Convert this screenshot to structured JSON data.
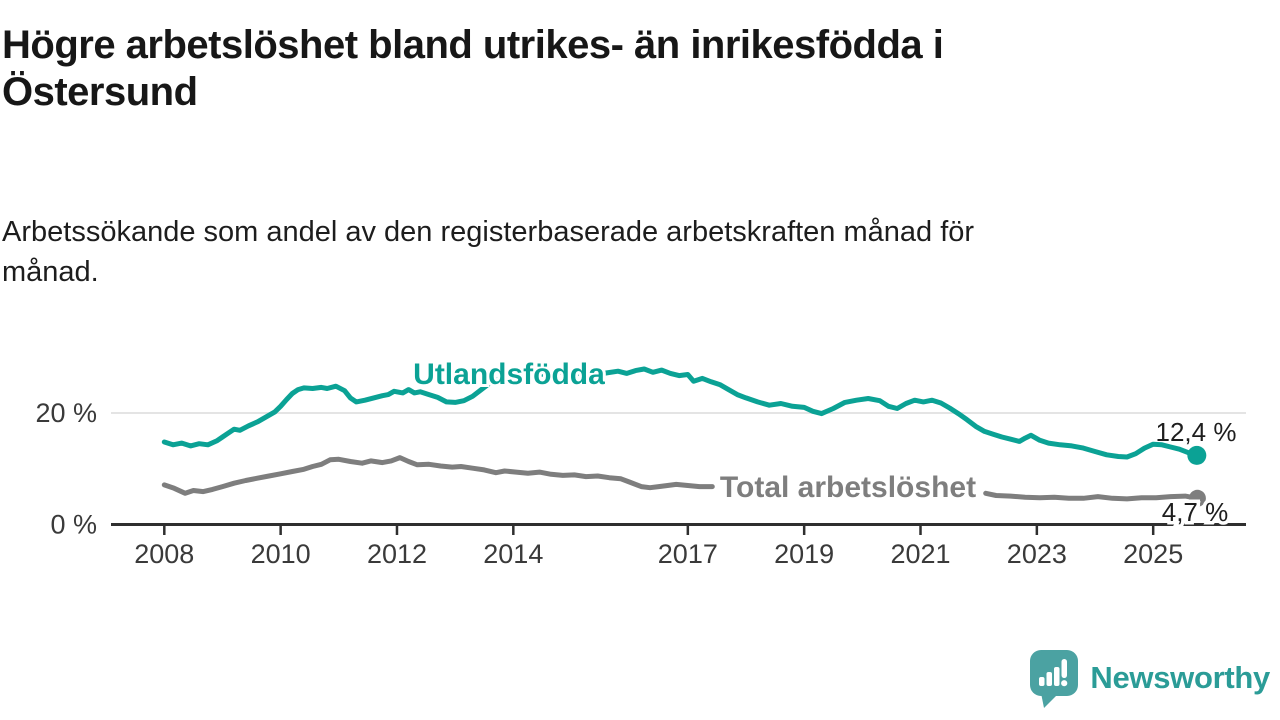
{
  "header": {
    "title": "Högre arbetslöshet bland utrikes- än inrikesfödda i\nÖstersund",
    "subtitle": "Arbetssökande som andel av den registerbaserade arbetskraften månad för\nmånad."
  },
  "branding": {
    "logo_text": "Newsworthy",
    "logo_icon": "speech-bubble-bar-chart",
    "icon_color": "#4ba2a2",
    "text_color": "#2b9c97"
  },
  "chart_data": {
    "type": "line",
    "title": "Högre arbetslöshet bland utrikes- än inrikesfödda i Östersund",
    "xlabel": "",
    "ylabel": "",
    "grid": "horizontal-20-only",
    "x_axis": {
      "ticks": [
        {
          "value": 2008,
          "label": "2008"
        },
        {
          "value": 2010,
          "label": "2010"
        },
        {
          "value": 2012,
          "label": "2012"
        },
        {
          "value": 2014,
          "label": "2014"
        },
        {
          "value": 2017,
          "label": "2017"
        },
        {
          "value": 2019,
          "label": "2019"
        },
        {
          "value": 2021,
          "label": "2021"
        },
        {
          "value": 2023,
          "label": "2023"
        },
        {
          "value": 2025,
          "label": "2025"
        }
      ]
    },
    "y_axis": {
      "ticks": [
        {
          "value": 0,
          "label": "0 %",
          "gridline": false
        },
        {
          "value": 20,
          "label": "20 %",
          "gridline": true
        }
      ],
      "range": [
        0,
        30
      ]
    },
    "series": [
      {
        "name": "Utlandsfödda",
        "color": "#0ba295",
        "end_value": 12.4,
        "end_label": "12,4 %",
        "segments": [
          [
            [
              2008.0,
              14.8
            ],
            [
              2008.15,
              14.3
            ],
            [
              2008.3,
              14.6
            ],
            [
              2008.45,
              14.1
            ],
            [
              2008.6,
              14.5
            ],
            [
              2008.75,
              14.3
            ],
            [
              2008.9,
              15.0
            ],
            [
              2009.0,
              15.7
            ],
            [
              2009.1,
              16.4
            ],
            [
              2009.2,
              17.1
            ],
            [
              2009.3,
              16.9
            ],
            [
              2009.45,
              17.7
            ],
            [
              2009.6,
              18.4
            ],
            [
              2009.75,
              19.3
            ],
            [
              2009.9,
              20.2
            ],
            [
              2010.0,
              21.2
            ],
            [
              2010.1,
              22.4
            ],
            [
              2010.2,
              23.5
            ],
            [
              2010.3,
              24.2
            ],
            [
              2010.4,
              24.5
            ],
            [
              2010.55,
              24.4
            ],
            [
              2010.7,
              24.6
            ],
            [
              2010.8,
              24.4
            ],
            [
              2010.95,
              24.8
            ],
            [
              2011.1,
              24.0
            ],
            [
              2011.2,
              22.7
            ],
            [
              2011.3,
              22.0
            ],
            [
              2011.45,
              22.3
            ],
            [
              2011.6,
              22.7
            ],
            [
              2011.75,
              23.1
            ],
            [
              2011.85,
              23.3
            ],
            [
              2011.95,
              23.9
            ],
            [
              2012.1,
              23.6
            ],
            [
              2012.2,
              24.2
            ],
            [
              2012.3,
              23.6
            ],
            [
              2012.4,
              23.8
            ],
            [
              2012.55,
              23.3
            ],
            [
              2012.7,
              22.8
            ],
            [
              2012.85,
              22.0
            ],
            [
              2013.0,
              21.9
            ],
            [
              2013.15,
              22.2
            ],
            [
              2013.3,
              23.0
            ],
            [
              2013.45,
              24.2
            ],
            [
              2013.6,
              25.4
            ],
            [
              2013.75,
              26.1
            ],
            [
              2013.9,
              26.6
            ],
            [
              2014.05,
              26.9
            ],
            [
              2014.3,
              27.2
            ],
            [
              2014.55,
              26.9
            ],
            [
              2014.8,
              27.3
            ],
            [
              2015.05,
              27.0
            ],
            [
              2015.3,
              27.3
            ],
            [
              2015.55,
              27.1
            ],
            [
              2015.8,
              27.5
            ],
            [
              2015.95,
              27.1
            ],
            [
              2016.1,
              27.6
            ],
            [
              2016.25,
              27.9
            ],
            [
              2016.4,
              27.3
            ],
            [
              2016.55,
              27.7
            ],
            [
              2016.7,
              27.1
            ],
            [
              2016.85,
              26.7
            ],
            [
              2017.0,
              26.9
            ],
            [
              2017.1,
              25.7
            ],
            [
              2017.25,
              26.2
            ],
            [
              2017.4,
              25.6
            ],
            [
              2017.55,
              25.1
            ],
            [
              2017.7,
              24.2
            ],
            [
              2017.85,
              23.3
            ],
            [
              2018.0,
              22.7
            ],
            [
              2018.2,
              22.0
            ],
            [
              2018.4,
              21.4
            ],
            [
              2018.6,
              21.7
            ],
            [
              2018.8,
              21.2
            ],
            [
              2019.0,
              21.0
            ],
            [
              2019.15,
              20.3
            ],
            [
              2019.3,
              19.9
            ],
            [
              2019.5,
              20.8
            ],
            [
              2019.7,
              21.9
            ],
            [
              2019.9,
              22.3
            ],
            [
              2020.1,
              22.6
            ],
            [
              2020.3,
              22.2
            ],
            [
              2020.45,
              21.2
            ],
            [
              2020.6,
              20.8
            ],
            [
              2020.75,
              21.7
            ],
            [
              2020.9,
              22.3
            ],
            [
              2021.05,
              22.0
            ],
            [
              2021.2,
              22.3
            ],
            [
              2021.35,
              21.8
            ],
            [
              2021.5,
              20.9
            ],
            [
              2021.65,
              19.9
            ],
            [
              2021.8,
              18.8
            ],
            [
              2021.95,
              17.6
            ],
            [
              2022.1,
              16.7
            ],
            [
              2022.25,
              16.2
            ],
            [
              2022.4,
              15.7
            ],
            [
              2022.55,
              15.3
            ],
            [
              2022.7,
              14.9
            ],
            [
              2022.8,
              15.5
            ],
            [
              2022.9,
              16.0
            ],
            [
              2023.05,
              15.1
            ],
            [
              2023.2,
              14.6
            ],
            [
              2023.4,
              14.3
            ],
            [
              2023.6,
              14.1
            ],
            [
              2023.8,
              13.7
            ],
            [
              2024.0,
              13.1
            ],
            [
              2024.2,
              12.5
            ],
            [
              2024.4,
              12.2
            ],
            [
              2024.55,
              12.1
            ],
            [
              2024.7,
              12.7
            ],
            [
              2024.85,
              13.7
            ],
            [
              2025.0,
              14.4
            ],
            [
              2025.15,
              14.3
            ],
            [
              2025.3,
              13.9
            ],
            [
              2025.45,
              13.5
            ],
            [
              2025.6,
              12.9
            ],
            [
              2025.75,
              12.4
            ]
          ]
        ]
      },
      {
        "name": "Total arbetslöshet",
        "color": "#7e7e7e",
        "end_value": 4.7,
        "end_label": "4,7 %",
        "segments": [
          [
            [
              2008.0,
              7.1
            ],
            [
              2008.17,
              6.5
            ],
            [
              2008.36,
              5.6
            ],
            [
              2008.5,
              6.1
            ],
            [
              2008.67,
              5.9
            ],
            [
              2008.83,
              6.3
            ],
            [
              2009.0,
              6.8
            ],
            [
              2009.2,
              7.4
            ],
            [
              2009.4,
              7.9
            ],
            [
              2009.6,
              8.3
            ],
            [
              2009.8,
              8.7
            ],
            [
              2010.0,
              9.1
            ],
            [
              2010.2,
              9.5
            ],
            [
              2010.4,
              9.9
            ],
            [
              2010.55,
              10.4
            ],
            [
              2010.7,
              10.8
            ],
            [
              2010.85,
              11.6
            ],
            [
              2011.0,
              11.7
            ],
            [
              2011.2,
              11.3
            ],
            [
              2011.4,
              11.0
            ],
            [
              2011.55,
              11.4
            ],
            [
              2011.75,
              11.1
            ],
            [
              2011.9,
              11.4
            ],
            [
              2012.05,
              12.0
            ],
            [
              2012.2,
              11.3
            ],
            [
              2012.35,
              10.7
            ],
            [
              2012.55,
              10.8
            ],
            [
              2012.75,
              10.5
            ],
            [
              2012.95,
              10.3
            ],
            [
              2013.1,
              10.4
            ],
            [
              2013.3,
              10.1
            ],
            [
              2013.5,
              9.8
            ],
            [
              2013.7,
              9.3
            ],
            [
              2013.85,
              9.6
            ],
            [
              2014.05,
              9.4
            ],
            [
              2014.25,
              9.2
            ],
            [
              2014.45,
              9.4
            ],
            [
              2014.65,
              9.0
            ],
            [
              2014.85,
              8.8
            ],
            [
              2015.05,
              8.9
            ],
            [
              2015.25,
              8.6
            ],
            [
              2015.45,
              8.7
            ],
            [
              2015.65,
              8.4
            ],
            [
              2015.85,
              8.2
            ],
            [
              2016.0,
              7.6
            ],
            [
              2016.2,
              6.8
            ],
            [
              2016.35,
              6.6
            ],
            [
              2016.5,
              6.8
            ],
            [
              2016.65,
              7.0
            ],
            [
              2016.8,
              7.2
            ],
            [
              2017.0,
              7.0
            ],
            [
              2017.2,
              6.8
            ],
            [
              2017.42,
              6.8
            ]
          ],
          [
            [
              2022.12,
              5.6
            ],
            [
              2022.3,
              5.2
            ],
            [
              2022.55,
              5.1
            ],
            [
              2022.8,
              4.9
            ],
            [
              2023.05,
              4.8
            ],
            [
              2023.3,
              4.9
            ],
            [
              2023.55,
              4.7
            ],
            [
              2023.8,
              4.7
            ],
            [
              2024.05,
              5.0
            ],
            [
              2024.3,
              4.7
            ],
            [
              2024.55,
              4.6
            ],
            [
              2024.8,
              4.8
            ],
            [
              2025.05,
              4.8
            ],
            [
              2025.3,
              5.0
            ],
            [
              2025.55,
              5.1
            ],
            [
              2025.76,
              4.7
            ]
          ]
        ]
      }
    ]
  }
}
